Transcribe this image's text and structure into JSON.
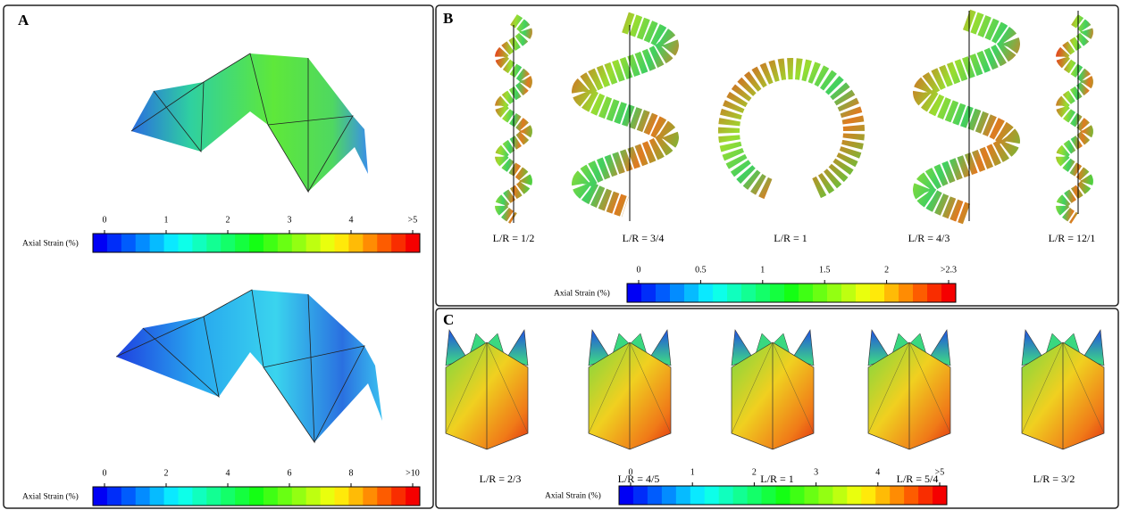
{
  "panels": [
    {
      "label": "A",
      "colorbars": [
        {
          "title": "Axial Strain (%)",
          "ticks": [
            "0",
            "1",
            "2",
            "3",
            "4",
            ">5"
          ]
        },
        {
          "title": "Axial Strain (%)",
          "ticks": [
            "0",
            "2",
            "4",
            "6",
            "8",
            ">10"
          ]
        }
      ]
    },
    {
      "label": "B",
      "captions": [
        "L/R = 1/2",
        "L/R = 3/4",
        "L/R = 1",
        "L/R = 4/3",
        "L/R = 12/1"
      ],
      "colorbars": [
        {
          "title": "Axial Strain (%)",
          "ticks": [
            "0",
            "0.5",
            "1",
            "1.5",
            "2",
            ">2.3"
          ]
        }
      ]
    },
    {
      "label": "C",
      "captions": [
        "L/R = 2/3",
        "L/R = 4/5",
        "L/R = 1",
        "L/R = 5/4",
        "L/R = 3/2"
      ],
      "colorbars": [
        {
          "title": "Axial Strain (%)",
          "ticks": [
            "0",
            "1",
            "2",
            "3",
            "4",
            ">5"
          ]
        }
      ]
    }
  ]
}
